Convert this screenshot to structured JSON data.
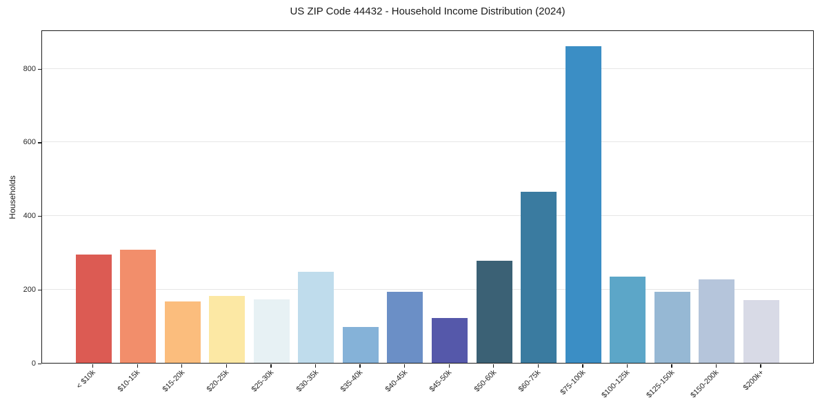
{
  "figure": {
    "background": "#ffffff"
  },
  "chart_data": {
    "type": "bar",
    "title": "US ZIP Code 44432 - Household Income Distribution (2024)",
    "xlabel": "",
    "ylabel": "Households",
    "categories": [
      "< $10k",
      "$10-15k",
      "$15-20k",
      "$20-25k",
      "$25-30k",
      "$30-35k",
      "$35-40k",
      "$40-45k",
      "$45-50k",
      "$50-60k",
      "$60-75k",
      "$75-100k",
      "$100-125k",
      "$125-150k",
      "$150-200k",
      "$200k+"
    ],
    "values": [
      295,
      308,
      167,
      182,
      173,
      248,
      97,
      193,
      122,
      278,
      465,
      860,
      234,
      193,
      227,
      170
    ],
    "bar_colors": [
      "#dc5b53",
      "#f28e6b",
      "#fbbd7d",
      "#fce8a4",
      "#e7f1f4",
      "#bfdcec",
      "#85b2d8",
      "#6b8fc6",
      "#5558aa",
      "#3b6175",
      "#3a7ba0",
      "#3b8ec5",
      "#5ca6c8",
      "#96b8d4",
      "#b5c5db",
      "#d8dae6"
    ],
    "yticks": [
      0,
      200,
      400,
      600,
      800
    ],
    "ylim": [
      0,
      905
    ],
    "grid": "horizontal-only",
    "grid_color": "#e6e6e6",
    "axis_color": "#1a1a1a",
    "legend": null
  }
}
